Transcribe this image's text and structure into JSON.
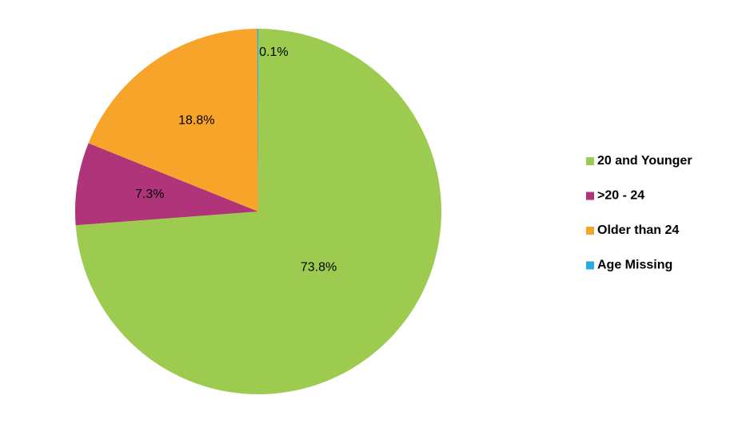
{
  "chart_data": {
    "type": "pie",
    "categories": [
      "20 and Younger",
      ">20 - 24",
      "Older than 24",
      "Age Missing"
    ],
    "values": [
      73.8,
      7.3,
      18.8,
      0.1
    ],
    "value_labels": [
      "73.8%",
      "7.3%",
      "18.8%",
      "0.1%"
    ],
    "colors": [
      "#9dcb50",
      "#b03479",
      "#f7a42b",
      "#2aaae2"
    ],
    "legend": "right"
  }
}
